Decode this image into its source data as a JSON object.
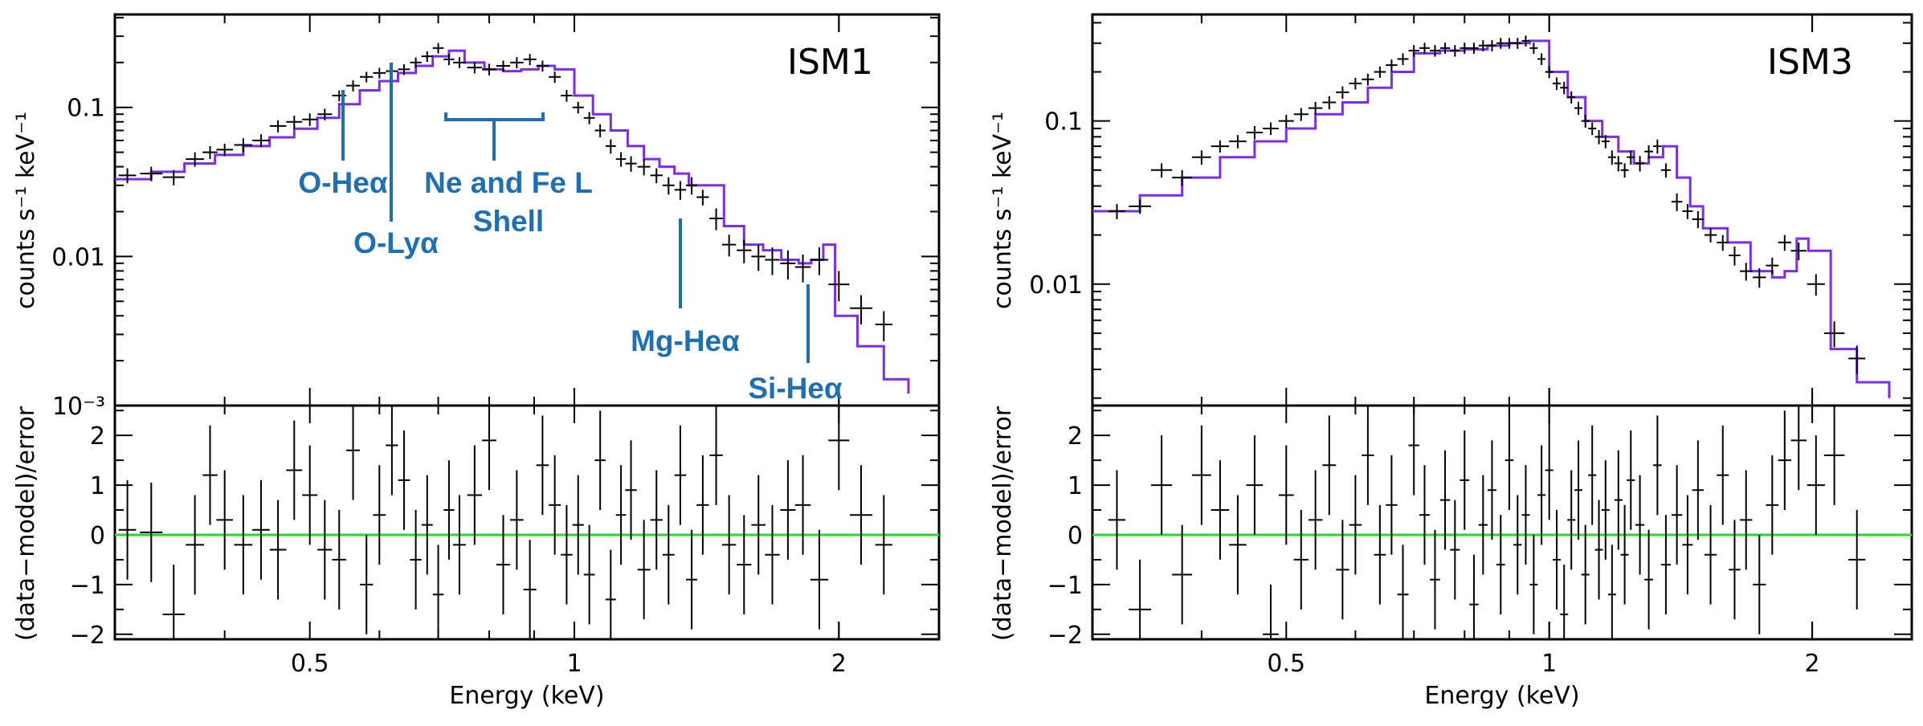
{
  "colors": {
    "model": "#7b2cf0",
    "zero_line": "#22dd22",
    "annotation": "#1f6fb3",
    "data": "#000000",
    "frame": "#000000"
  },
  "shared": {
    "xlabel": "Energy (keV)",
    "upper_ylabel": "counts s⁻¹ keV⁻¹",
    "lower_ylabel": "(data−model)/error"
  },
  "chart_data": [
    {
      "type": "line",
      "panel": "upper-left",
      "title": "ISM1",
      "xscale": "log",
      "yscale": "log",
      "xlim": [
        0.3,
        2.6
      ],
      "ylim": [
        0.001,
        0.42
      ],
      "xticks": [
        {
          "v": 0.5,
          "label": "0.5"
        },
        {
          "v": 1,
          "label": "1"
        },
        {
          "v": 2,
          "label": "2"
        }
      ],
      "yticks": [
        {
          "v": 0.1,
          "label": "0.1"
        },
        {
          "v": 0.01,
          "label": "0.01"
        },
        {
          "v": 0.001,
          "label": "10⁻³"
        }
      ],
      "xlabel": "",
      "ylabel": "counts s⁻¹ keV⁻¹",
      "data": {
        "x": [
          0.31,
          0.33,
          0.35,
          0.37,
          0.385,
          0.4,
          0.42,
          0.44,
          0.46,
          0.48,
          0.5,
          0.52,
          0.54,
          0.56,
          0.58,
          0.6,
          0.62,
          0.64,
          0.66,
          0.68,
          0.7,
          0.72,
          0.74,
          0.77,
          0.8,
          0.83,
          0.86,
          0.89,
          0.92,
          0.95,
          0.98,
          1.01,
          1.04,
          1.07,
          1.1,
          1.13,
          1.16,
          1.2,
          1.24,
          1.28,
          1.32,
          1.36,
          1.4,
          1.45,
          1.5,
          1.56,
          1.62,
          1.68,
          1.75,
          1.82,
          1.9,
          2.0,
          2.12,
          2.25
        ],
        "y": [
          0.035,
          0.036,
          0.034,
          0.045,
          0.05,
          0.052,
          0.056,
          0.06,
          0.075,
          0.08,
          0.083,
          0.09,
          0.12,
          0.14,
          0.16,
          0.17,
          0.175,
          0.18,
          0.2,
          0.22,
          0.25,
          0.21,
          0.2,
          0.185,
          0.18,
          0.19,
          0.2,
          0.21,
          0.19,
          0.16,
          0.12,
          0.1,
          0.085,
          0.07,
          0.055,
          0.045,
          0.042,
          0.04,
          0.035,
          0.03,
          0.028,
          0.03,
          0.025,
          0.018,
          0.012,
          0.011,
          0.01,
          0.0095,
          0.009,
          0.0085,
          0.0095,
          0.0065,
          0.0045,
          0.0035
        ],
        "yerr": [
          0.004,
          0.004,
          0.004,
          0.005,
          0.005,
          0.005,
          0.006,
          0.006,
          0.007,
          0.008,
          0.008,
          0.008,
          0.01,
          0.012,
          0.013,
          0.014,
          0.014,
          0.015,
          0.016,
          0.018,
          0.02,
          0.018,
          0.017,
          0.016,
          0.016,
          0.016,
          0.017,
          0.018,
          0.016,
          0.014,
          0.011,
          0.009,
          0.008,
          0.007,
          0.006,
          0.005,
          0.005,
          0.005,
          0.004,
          0.004,
          0.004,
          0.004,
          0.003,
          0.003,
          0.002,
          0.002,
          0.002,
          0.002,
          0.002,
          0.0018,
          0.002,
          0.0015,
          0.001,
          0.0008
        ]
      },
      "model": {
        "x": [
          0.3,
          0.33,
          0.36,
          0.39,
          0.42,
          0.45,
          0.48,
          0.51,
          0.54,
          0.57,
          0.6,
          0.63,
          0.66,
          0.69,
          0.72,
          0.75,
          0.79,
          0.83,
          0.87,
          0.91,
          0.95,
          1.0,
          1.05,
          1.1,
          1.15,
          1.2,
          1.25,
          1.3,
          1.35,
          1.4,
          1.48,
          1.56,
          1.64,
          1.72,
          1.8,
          1.86,
          1.92,
          1.98,
          2.1,
          2.25,
          2.4
        ],
        "y": [
          0.033,
          0.037,
          0.042,
          0.048,
          0.055,
          0.063,
          0.072,
          0.085,
          0.105,
          0.13,
          0.15,
          0.17,
          0.19,
          0.22,
          0.24,
          0.2,
          0.18,
          0.175,
          0.18,
          0.19,
          0.18,
          0.12,
          0.09,
          0.07,
          0.055,
          0.045,
          0.04,
          0.036,
          0.03,
          0.03,
          0.016,
          0.012,
          0.011,
          0.0095,
          0.009,
          0.0095,
          0.012,
          0.004,
          0.0025,
          0.0015,
          0.0012
        ]
      },
      "annotations": [
        {
          "label": "O-Heα",
          "energy": 0.57
        },
        {
          "label": "O-Lyα",
          "energy": 0.654
        },
        {
          "label": "Ne and Fe L",
          "label2": "Shell",
          "energy_range": [
            0.72,
            0.96
          ]
        },
        {
          "label": "Mg-Heα",
          "energy": 1.34
        },
        {
          "label": "Si-Heα",
          "energy": 1.86
        }
      ]
    },
    {
      "type": "scatter",
      "panel": "lower-left",
      "xscale": "log",
      "xlim": [
        0.3,
        2.6
      ],
      "ylim": [
        -2.1,
        2.6
      ],
      "xticks": [
        {
          "v": 0.5,
          "label": "0.5"
        },
        {
          "v": 1,
          "label": "1"
        },
        {
          "v": 2,
          "label": "2"
        }
      ],
      "yticks": [
        {
          "v": 2,
          "label": "2"
        },
        {
          "v": 1,
          "label": "1"
        },
        {
          "v": 0,
          "label": "0"
        },
        {
          "v": -1,
          "label": "−1"
        },
        {
          "v": -2,
          "label": "−2"
        }
      ],
      "xlabel": "Energy (keV)",
      "ylabel": "(data−model)/error",
      "data": {
        "x": [
          0.31,
          0.33,
          0.35,
          0.37,
          0.385,
          0.4,
          0.42,
          0.44,
          0.46,
          0.48,
          0.5,
          0.52,
          0.54,
          0.56,
          0.58,
          0.6,
          0.62,
          0.64,
          0.66,
          0.68,
          0.7,
          0.72,
          0.74,
          0.77,
          0.8,
          0.83,
          0.86,
          0.89,
          0.92,
          0.95,
          0.98,
          1.01,
          1.04,
          1.07,
          1.1,
          1.13,
          1.16,
          1.2,
          1.24,
          1.28,
          1.32,
          1.36,
          1.4,
          1.45,
          1.5,
          1.56,
          1.62,
          1.68,
          1.75,
          1.82,
          1.9,
          2.0,
          2.12,
          2.25
        ],
        "y": [
          0.1,
          0.05,
          -1.6,
          -0.2,
          1.2,
          0.3,
          -0.2,
          0.1,
          -0.3,
          1.3,
          0.8,
          -0.3,
          -0.5,
          1.7,
          -1.0,
          0.4,
          1.8,
          1.1,
          -0.5,
          0.2,
          -1.2,
          0.5,
          -0.2,
          0.8,
          1.9,
          -0.6,
          0.3,
          -1.1,
          1.4,
          0.6,
          -0.4,
          0.2,
          -0.8,
          1.5,
          -1.3,
          0.4,
          0.9,
          -0.7,
          0.3,
          -0.4,
          1.2,
          -0.9,
          0.6,
          1.6,
          -0.2,
          -0.6,
          0.2,
          -0.4,
          0.5,
          0.6,
          -0.9,
          1.9,
          0.4,
          -0.2
        ],
        "yerr": [
          1.0,
          1.0,
          1.0,
          1.0,
          1.0,
          1.0,
          1.0,
          1.0,
          1.0,
          1.0,
          1.0,
          1.0,
          1.0,
          1.0,
          1.0,
          1.0,
          1.0,
          1.0,
          1.0,
          1.0,
          1.0,
          1.0,
          1.0,
          1.0,
          1.0,
          1.0,
          1.0,
          1.0,
          1.0,
          1.0,
          1.0,
          1.0,
          1.0,
          1.0,
          1.0,
          1.0,
          1.0,
          1.0,
          1.0,
          1.0,
          1.0,
          1.0,
          1.0,
          1.0,
          1.0,
          1.0,
          1.0,
          1.0,
          1.0,
          1.0,
          1.0,
          1.0,
          1.0,
          1.0
        ]
      }
    },
    {
      "type": "line",
      "panel": "upper-right",
      "title": "ISM3",
      "xscale": "log",
      "yscale": "log",
      "xlim": [
        0.3,
        2.6
      ],
      "ylim": [
        0.0018,
        0.45
      ],
      "xticks": [
        {
          "v": 0.5,
          "label": "0.5"
        },
        {
          "v": 1,
          "label": "1"
        },
        {
          "v": 2,
          "label": "2"
        }
      ],
      "yticks": [
        {
          "v": 0.1,
          "label": "0.1"
        },
        {
          "v": 0.01,
          "label": "0.01"
        }
      ],
      "xlabel": "",
      "ylabel": "counts s⁻¹ keV⁻¹",
      "data": {
        "x": [
          0.32,
          0.34,
          0.36,
          0.38,
          0.4,
          0.42,
          0.44,
          0.46,
          0.48,
          0.5,
          0.52,
          0.54,
          0.56,
          0.58,
          0.6,
          0.62,
          0.64,
          0.66,
          0.68,
          0.7,
          0.72,
          0.74,
          0.76,
          0.78,
          0.8,
          0.82,
          0.84,
          0.86,
          0.88,
          0.9,
          0.92,
          0.94,
          0.96,
          0.98,
          1.0,
          1.02,
          1.04,
          1.06,
          1.08,
          1.1,
          1.12,
          1.14,
          1.16,
          1.18,
          1.2,
          1.22,
          1.24,
          1.27,
          1.3,
          1.33,
          1.36,
          1.4,
          1.44,
          1.48,
          1.53,
          1.58,
          1.63,
          1.68,
          1.74,
          1.8,
          1.86,
          1.93,
          2.02,
          2.12,
          2.25
        ],
        "y": [
          0.028,
          0.03,
          0.05,
          0.045,
          0.06,
          0.07,
          0.075,
          0.085,
          0.09,
          0.1,
          0.11,
          0.12,
          0.13,
          0.15,
          0.17,
          0.18,
          0.2,
          0.22,
          0.24,
          0.27,
          0.28,
          0.27,
          0.28,
          0.27,
          0.28,
          0.28,
          0.29,
          0.29,
          0.3,
          0.3,
          0.3,
          0.31,
          0.28,
          0.24,
          0.2,
          0.17,
          0.16,
          0.14,
          0.12,
          0.1,
          0.09,
          0.08,
          0.075,
          0.06,
          0.055,
          0.05,
          0.06,
          0.055,
          0.065,
          0.07,
          0.05,
          0.032,
          0.028,
          0.025,
          0.02,
          0.018,
          0.015,
          0.012,
          0.011,
          0.013,
          0.018,
          0.016,
          0.01,
          0.005,
          0.0035
        ],
        "yerr": [
          0.003,
          0.003,
          0.005,
          0.005,
          0.006,
          0.006,
          0.007,
          0.008,
          0.008,
          0.009,
          0.01,
          0.011,
          0.012,
          0.013,
          0.014,
          0.015,
          0.016,
          0.018,
          0.02,
          0.022,
          0.022,
          0.022,
          0.022,
          0.022,
          0.022,
          0.022,
          0.023,
          0.023,
          0.023,
          0.023,
          0.023,
          0.024,
          0.022,
          0.02,
          0.017,
          0.015,
          0.014,
          0.012,
          0.011,
          0.009,
          0.008,
          0.008,
          0.007,
          0.006,
          0.006,
          0.005,
          0.006,
          0.006,
          0.006,
          0.007,
          0.005,
          0.004,
          0.003,
          0.003,
          0.002,
          0.002,
          0.002,
          0.0015,
          0.0015,
          0.0015,
          0.002,
          0.002,
          0.0015,
          0.0009,
          0.0007
        ]
      },
      "model": {
        "x": [
          0.3,
          0.34,
          0.38,
          0.42,
          0.46,
          0.5,
          0.54,
          0.58,
          0.62,
          0.66,
          0.7,
          0.75,
          0.8,
          0.85,
          0.9,
          0.95,
          1.0,
          1.05,
          1.1,
          1.15,
          1.2,
          1.25,
          1.3,
          1.35,
          1.4,
          1.45,
          1.5,
          1.6,
          1.7,
          1.8,
          1.86,
          1.92,
          1.98,
          2.1,
          2.25,
          2.45
        ],
        "y": [
          0.028,
          0.035,
          0.045,
          0.06,
          0.075,
          0.09,
          0.11,
          0.13,
          0.16,
          0.2,
          0.26,
          0.27,
          0.275,
          0.29,
          0.3,
          0.31,
          0.2,
          0.14,
          0.1,
          0.08,
          0.065,
          0.055,
          0.06,
          0.07,
          0.045,
          0.03,
          0.022,
          0.018,
          0.012,
          0.011,
          0.012,
          0.019,
          0.016,
          0.004,
          0.0025,
          0.002
        ]
      }
    },
    {
      "type": "scatter",
      "panel": "lower-right",
      "xscale": "log",
      "xlim": [
        0.3,
        2.6
      ],
      "ylim": [
        -2.1,
        2.6
      ],
      "xticks": [
        {
          "v": 0.5,
          "label": "0.5"
        },
        {
          "v": 1,
          "label": "1"
        },
        {
          "v": 2,
          "label": "2"
        }
      ],
      "yticks": [
        {
          "v": 2,
          "label": "2"
        },
        {
          "v": 1,
          "label": "1"
        },
        {
          "v": 0,
          "label": "0"
        },
        {
          "v": -1,
          "label": "−1"
        },
        {
          "v": -2,
          "label": "−2"
        }
      ],
      "xlabel": "Energy (keV)",
      "ylabel": "(data−model)/error",
      "data": {
        "x": [
          0.32,
          0.34,
          0.36,
          0.38,
          0.4,
          0.42,
          0.44,
          0.46,
          0.48,
          0.5,
          0.52,
          0.54,
          0.56,
          0.58,
          0.6,
          0.62,
          0.64,
          0.66,
          0.68,
          0.7,
          0.72,
          0.74,
          0.76,
          0.78,
          0.8,
          0.82,
          0.84,
          0.86,
          0.88,
          0.9,
          0.92,
          0.94,
          0.96,
          0.98,
          1.0,
          1.02,
          1.04,
          1.06,
          1.08,
          1.1,
          1.12,
          1.14,
          1.16,
          1.18,
          1.2,
          1.22,
          1.24,
          1.27,
          1.3,
          1.33,
          1.36,
          1.4,
          1.44,
          1.48,
          1.53,
          1.58,
          1.63,
          1.68,
          1.74,
          1.8,
          1.86,
          1.93,
          2.02,
          2.12,
          2.25
        ],
        "y": [
          0.3,
          -1.5,
          1.0,
          -0.8,
          1.2,
          0.5,
          -0.2,
          1.0,
          -2.0,
          0.8,
          -0.5,
          0.3,
          1.4,
          -0.7,
          0.2,
          1.6,
          -0.4,
          0.6,
          -1.2,
          1.8,
          0.4,
          -0.9,
          0.7,
          -0.3,
          1.1,
          -1.4,
          0.2,
          0.9,
          -0.6,
          1.5,
          -0.2,
          0.4,
          -1.0,
          0.8,
          1.3,
          -0.5,
          -1.6,
          0.3,
          0.9,
          -0.8,
          1.2,
          -0.3,
          0.5,
          -1.2,
          0.7,
          -0.4,
          1.1,
          0.2,
          -0.9,
          1.4,
          -0.6,
          0.4,
          -0.2,
          0.9,
          -0.4,
          1.2,
          -0.7,
          0.3,
          -1.0,
          0.6,
          1.5,
          1.9,
          1.0,
          1.6,
          -0.5
        ],
        "yerr": [
          1.0,
          1.0,
          1.0,
          1.0,
          1.0,
          1.0,
          1.0,
          1.0,
          1.0,
          1.0,
          1.0,
          1.0,
          1.0,
          1.0,
          1.0,
          1.0,
          1.0,
          1.0,
          1.0,
          1.0,
          1.0,
          1.0,
          1.0,
          1.0,
          1.0,
          1.0,
          1.0,
          1.0,
          1.0,
          1.0,
          1.0,
          1.0,
          1.0,
          1.0,
          1.0,
          1.0,
          1.0,
          1.0,
          1.0,
          1.0,
          1.0,
          1.0,
          1.0,
          1.0,
          1.0,
          1.0,
          1.0,
          1.0,
          1.0,
          1.0,
          1.0,
          1.0,
          1.0,
          1.0,
          1.0,
          1.0,
          1.0,
          1.0,
          1.0,
          1.0,
          1.0,
          1.0,
          1.0,
          1.0,
          1.0
        ]
      }
    }
  ]
}
